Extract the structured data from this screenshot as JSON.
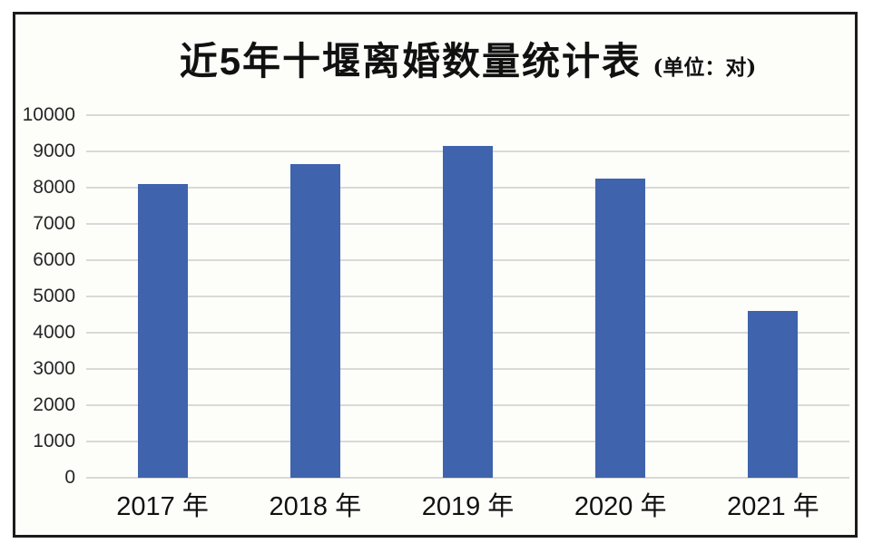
{
  "chart_data": {
    "type": "bar",
    "title": "近5年十堰离婚数量统计表",
    "unit_label": "(单位：对)",
    "categories": [
      "2017 年",
      "2018 年",
      "2019 年",
      "2020 年",
      "2021 年"
    ],
    "values": [
      8100,
      8650,
      9150,
      8250,
      4600
    ],
    "xlabel": "",
    "ylabel": "",
    "ylim": [
      0,
      10000
    ],
    "yticks": [
      0,
      1000,
      2000,
      3000,
      4000,
      5000,
      6000,
      7000,
      8000,
      9000,
      10000
    ],
    "grid": true,
    "legend_position": "none",
    "bar_color": "#3F63AC",
    "gridline_color": "#D9D9D9",
    "frame_color": "#1B1B1B",
    "plot_background": "#FDFDFA",
    "text_color": "#111111"
  }
}
